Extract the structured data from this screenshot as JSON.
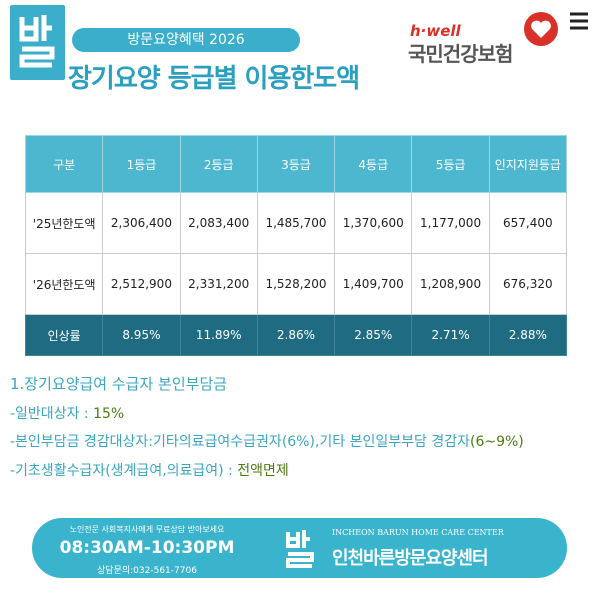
{
  "header": {
    "badge": "방문요양혜택 2026",
    "title": "장기요양 등급별 이용한도액",
    "brand_tagline": "h·well",
    "brand_name": "국민건강보험"
  },
  "table": {
    "columns": [
      "구분",
      "1등급",
      "2등급",
      "3등급",
      "4등급",
      "5등급",
      "인지지원등급"
    ],
    "rows": [
      [
        "'25년한도액",
        "2,306,400",
        "2,083,400",
        "1,485,700",
        "1,370,600",
        "1,177,000",
        "657,400"
      ],
      [
        "'26년한도액",
        "2,512,900",
        "2,331,200",
        "1,528,200",
        "1,409,700",
        "1,208,900",
        "676,320"
      ],
      [
        "인상률",
        "8.95%",
        "11.89%",
        "2.86%",
        "2.85%",
        "2.71%",
        "2.88%"
      ]
    ]
  },
  "notes": {
    "heading": "1.장기요양급여 수급자 본인부담금",
    "items": [
      {
        "label": "-일반대상자 : ",
        "value": "15%"
      },
      {
        "label": "-본인부담금 경감대상자:기타의료급여수급권자(6%),기타 본인일부부담 경감자",
        "value": "(6~9%)"
      },
      {
        "label": "-기초생활수급자(생계급여,의료급여) : ",
        "value": "전액면제"
      }
    ]
  },
  "footer": {
    "notice": "노인전문 사회복지사에게 무료상담 받아보세요",
    "hours": "08:30AM-10:30PM",
    "phone": "상담문의:032-561-7706",
    "english_name": "INCHEON BARUN HOME CARE CENTER",
    "name": "인천바른방문요양센터"
  }
}
